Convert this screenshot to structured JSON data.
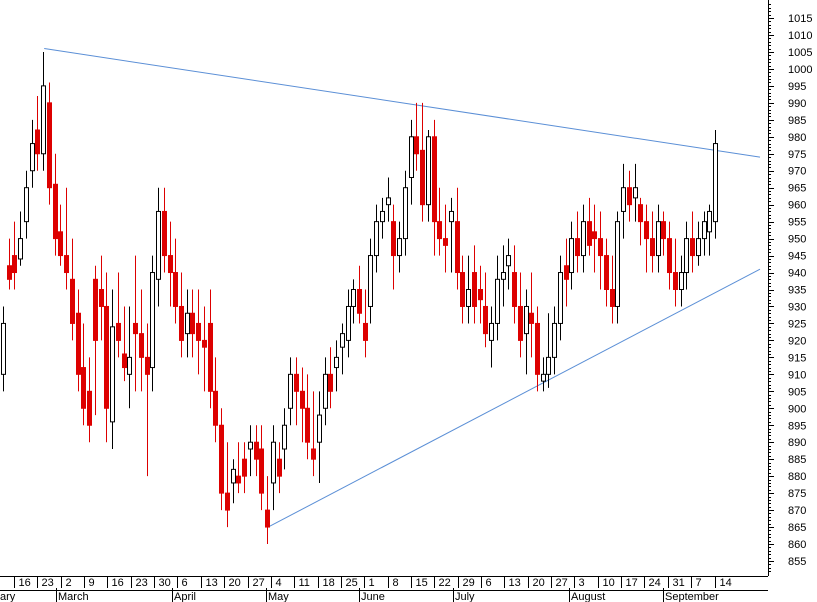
{
  "chart_data": {
    "type": "candlestick",
    "colors": {
      "up_fill": "#ffffff",
      "down_fill": "#dd0000",
      "trendline": "#5b8fd6",
      "axis": "#000000"
    },
    "grid": false,
    "y_axis": {
      "position": "right",
      "range": [
        851,
        1020
      ],
      "labeled_ticks": [
        855,
        860,
        865,
        870,
        875,
        880,
        885,
        890,
        895,
        900,
        905,
        910,
        915,
        920,
        925,
        930,
        935,
        940,
        945,
        950,
        955,
        960,
        965,
        970,
        975,
        980,
        985,
        990,
        995,
        1000,
        1005,
        1010,
        1015
      ]
    },
    "x_axis": {
      "date_ticks": [
        "16",
        "23",
        "2",
        "9",
        "16",
        "23",
        "30",
        "6",
        "13",
        "20",
        "27",
        "4",
        "11",
        "18",
        "25",
        "1",
        "8",
        "15",
        "22",
        "29",
        "6",
        "13",
        "20",
        "27",
        "3",
        "10",
        "17",
        "24",
        "31",
        "7",
        "14"
      ],
      "month_labels": [
        {
          "text": "ary",
          "tick": 0
        },
        {
          "text": "March",
          "tick": 2
        },
        {
          "text": "April",
          "tick": 7
        },
        {
          "text": "May",
          "tick": 11
        },
        {
          "text": "June",
          "tick": 15
        },
        {
          "text": "July",
          "tick": 19
        },
        {
          "text": "August",
          "tick": 24
        },
        {
          "text": "September",
          "tick": 28
        }
      ]
    },
    "candles": [
      [
        910,
        930,
        905,
        925
      ],
      [
        942,
        950,
        935,
        938
      ],
      [
        945,
        955,
        935,
        940
      ],
      [
        944,
        958,
        942,
        950
      ],
      [
        955,
        970,
        950,
        965
      ],
      [
        970,
        985,
        965,
        978
      ],
      [
        982,
        992,
        970,
        975
      ],
      [
        975,
        1005,
        970,
        995
      ],
      [
        990,
        996,
        960,
        965
      ],
      [
        966,
        975,
        945,
        950
      ],
      [
        952,
        960,
        942,
        945
      ],
      [
        945,
        965,
        935,
        940
      ],
      [
        938,
        950,
        920,
        925
      ],
      [
        928,
        935,
        905,
        910
      ],
      [
        912,
        925,
        895,
        900
      ],
      [
        905,
        915,
        890,
        895
      ],
      [
        938,
        942,
        898,
        920
      ],
      [
        935,
        945,
        920,
        930
      ],
      [
        930,
        940,
        890,
        900
      ],
      [
        896,
        935,
        888,
        924
      ],
      [
        925,
        940,
        915,
        920
      ],
      [
        916,
        930,
        908,
        912
      ],
      [
        910,
        930,
        900,
        915
      ],
      [
        925,
        945,
        905,
        922
      ],
      [
        922,
        935,
        905,
        915
      ],
      [
        915,
        925,
        880,
        910
      ],
      [
        912,
        945,
        905,
        940
      ],
      [
        938,
        965,
        930,
        958
      ],
      [
        958,
        965,
        940,
        945
      ],
      [
        945,
        955,
        930,
        940
      ],
      [
        940,
        950,
        925,
        930
      ],
      [
        930,
        940,
        915,
        920
      ],
      [
        922,
        935,
        915,
        928
      ],
      [
        928,
        935,
        915,
        922
      ],
      [
        925,
        935,
        910,
        920
      ],
      [
        920,
        930,
        905,
        918
      ],
      [
        925,
        935,
        900,
        905
      ],
      [
        905,
        915,
        890,
        895
      ],
      [
        895,
        900,
        870,
        875
      ],
      [
        875,
        890,
        865,
        870
      ],
      [
        878,
        885,
        872,
        882
      ],
      [
        880,
        890,
        875,
        878
      ],
      [
        885,
        890,
        875,
        880
      ],
      [
        888,
        895,
        880,
        890
      ],
      [
        890,
        895,
        880,
        885
      ],
      [
        888,
        895,
        870,
        875
      ],
      [
        870,
        880,
        860,
        865
      ],
      [
        878,
        895,
        870,
        890
      ],
      [
        885,
        890,
        875,
        880
      ],
      [
        888,
        900,
        882,
        895
      ],
      [
        900,
        915,
        895,
        910
      ],
      [
        910,
        915,
        895,
        905
      ],
      [
        905,
        912,
        890,
        900
      ],
      [
        900,
        910,
        885,
        890
      ],
      [
        888,
        905,
        880,
        885
      ],
      [
        890,
        905,
        878,
        898
      ],
      [
        900,
        915,
        895,
        910
      ],
      [
        910,
        918,
        900,
        905
      ],
      [
        912,
        920,
        905,
        915
      ],
      [
        918,
        925,
        910,
        922
      ],
      [
        920,
        935,
        915,
        930
      ],
      [
        930,
        938,
        925,
        935
      ],
      [
        935,
        942,
        925,
        928
      ],
      [
        925,
        935,
        915,
        920
      ],
      [
        930,
        950,
        925,
        945
      ],
      [
        945,
        960,
        940,
        955
      ],
      [
        955,
        962,
        950,
        958
      ],
      [
        960,
        968,
        955,
        962
      ],
      [
        955,
        960,
        935,
        945
      ],
      [
        945,
        955,
        940,
        950
      ],
      [
        950,
        970,
        945,
        965
      ],
      [
        968,
        985,
        960,
        980
      ],
      [
        980,
        990,
        970,
        975
      ],
      [
        976,
        990,
        955,
        960
      ],
      [
        960,
        982,
        955,
        980
      ],
      [
        980,
        985,
        945,
        955
      ],
      [
        955,
        965,
        945,
        950
      ],
      [
        950,
        960,
        940,
        948
      ],
      [
        955,
        962,
        940,
        958
      ],
      [
        955,
        965,
        935,
        940
      ],
      [
        940,
        945,
        925,
        930
      ],
      [
        930,
        945,
        925,
        935
      ],
      [
        940,
        948,
        925,
        930
      ],
      [
        935,
        942,
        925,
        932
      ],
      [
        930,
        940,
        918,
        922
      ],
      [
        920,
        930,
        912,
        925
      ],
      [
        925,
        945,
        920,
        938
      ],
      [
        938,
        948,
        930,
        940
      ],
      [
        942,
        950,
        935,
        945
      ],
      [
        940,
        948,
        925,
        930
      ],
      [
        930,
        940,
        915,
        920
      ],
      [
        922,
        935,
        910,
        930
      ],
      [
        928,
        940,
        915,
        925
      ],
      [
        925,
        930,
        905,
        910
      ],
      [
        908,
        915,
        905,
        910
      ],
      [
        910,
        928,
        906,
        915
      ],
      [
        915,
        930,
        910,
        925
      ],
      [
        925,
        945,
        920,
        940
      ],
      [
        942,
        950,
        930,
        938
      ],
      [
        940,
        955,
        935,
        950
      ],
      [
        950,
        958,
        940,
        945
      ],
      [
        945,
        960,
        940,
        955
      ],
      [
        955,
        962,
        945,
        948
      ],
      [
        952,
        960,
        940,
        950
      ],
      [
        950,
        958,
        935,
        945
      ],
      [
        945,
        950,
        930,
        935
      ],
      [
        935,
        945,
        925,
        930
      ],
      [
        930,
        958,
        925,
        955
      ],
      [
        958,
        972,
        950,
        965
      ],
      [
        965,
        970,
        955,
        960
      ],
      [
        962,
        972,
        955,
        965
      ],
      [
        960,
        962,
        948,
        955
      ],
      [
        955,
        960,
        940,
        950
      ],
      [
        950,
        958,
        940,
        945
      ],
      [
        945,
        960,
        940,
        955
      ],
      [
        955,
        958,
        945,
        950
      ],
      [
        950,
        955,
        935,
        940
      ],
      [
        940,
        950,
        930,
        935
      ],
      [
        935,
        945,
        930,
        940
      ],
      [
        940,
        955,
        935,
        950
      ],
      [
        950,
        958,
        940,
        945
      ],
      [
        945,
        955,
        942,
        950
      ],
      [
        950,
        958,
        945,
        955
      ],
      [
        952,
        960,
        945,
        958
      ],
      [
        955,
        982,
        950,
        978
      ]
    ],
    "trendlines": [
      {
        "from": {
          "idx": 7,
          "v": 1006
        },
        "to": {
          "idx": "end",
          "v": 974
        }
      },
      {
        "from": {
          "idx": 46,
          "v": 865
        },
        "to": {
          "idx": "end",
          "v": 941
        }
      }
    ]
  }
}
